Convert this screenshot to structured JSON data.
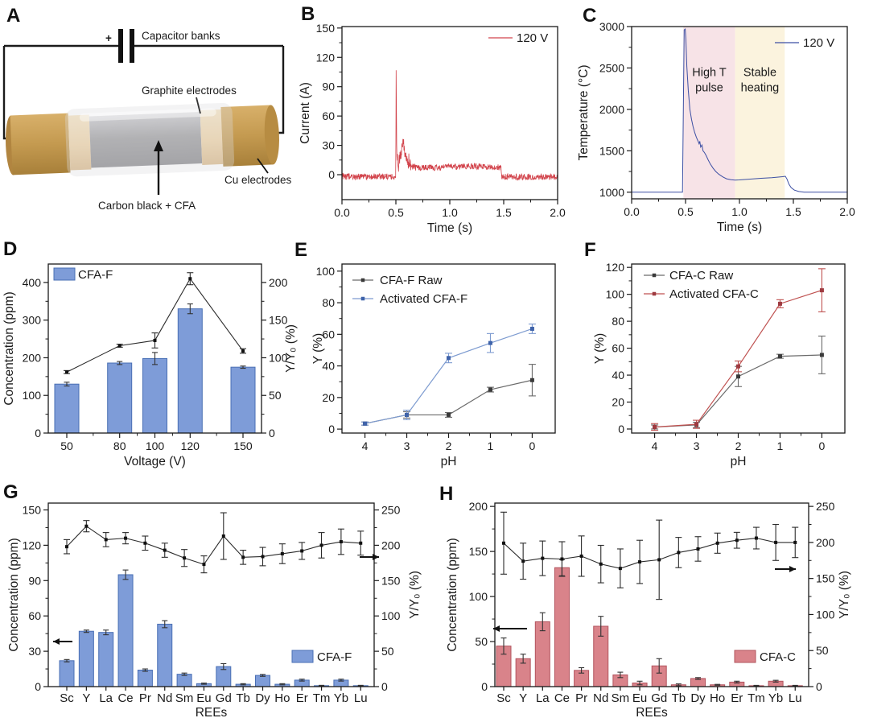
{
  "panel_a": {
    "label": "A",
    "plus_sign": "+",
    "capacitor_label": "Capacitor banks",
    "graphite_label": "Graphite electrodes",
    "cu_label": "Cu electrodes",
    "core_label": "Carbon black + CFA",
    "colors": {
      "cu": "#c49a50",
      "cu_dark": "#b18540",
      "graphite_ring": "#eed2a4",
      "core_gray": "#9b9b9d",
      "cu_text": "#d2a965",
      "graphite_text": "#8c8c8c"
    }
  },
  "chart_data": [
    {
      "panel": "B",
      "type": "line",
      "xlabel": "Time (s)",
      "ylabel": "Current (A)",
      "xlim": [
        0,
        2
      ],
      "ylim": [
        -25.5,
        151.5
      ],
      "xticks": [
        0,
        0.5,
        1,
        1.5,
        2
      ],
      "xtick_labels": [
        "0.0",
        "0.5",
        "1.0",
        "1.5",
        "2.0"
      ],
      "xminor": [
        0.25,
        0.75,
        1.25,
        1.75
      ],
      "yticks": [
        0,
        30,
        60,
        90,
        120,
        150
      ],
      "yminor": [
        15,
        45,
        75,
        105,
        135
      ],
      "legend": [
        {
          "label": "120 V",
          "color": "#d2444c"
        }
      ],
      "series": [
        {
          "name": "120 V",
          "color": "#d2444c",
          "width": 0.8,
          "noise": 3.2,
          "noise_boost": {
            "x0": 0.505,
            "x1": 0.64,
            "amp": 8
          },
          "points": [
            [
              0,
              -2
            ],
            [
              0.49,
              -2
            ],
            [
              0.499,
              0
            ],
            [
              0.503,
              120
            ],
            [
              0.506,
              45
            ],
            [
              0.509,
              12
            ],
            [
              0.515,
              14
            ],
            [
              0.525,
              12
            ],
            [
              0.54,
              20
            ],
            [
              0.555,
              26
            ],
            [
              0.565,
              30
            ],
            [
              0.573,
              33
            ],
            [
              0.582,
              26
            ],
            [
              0.595,
              18
            ],
            [
              0.61,
              13
            ],
            [
              0.63,
              10
            ],
            [
              0.66,
              8
            ],
            [
              0.7,
              7
            ],
            [
              0.8,
              7
            ],
            [
              0.9,
              7.5
            ],
            [
              1.0,
              8
            ],
            [
              1.1,
              8.5
            ],
            [
              1.2,
              8.5
            ],
            [
              1.3,
              8
            ],
            [
              1.4,
              8
            ],
            [
              1.45,
              7.5
            ],
            [
              1.475,
              6.5
            ],
            [
              1.483,
              -2
            ],
            [
              1.6,
              -2.5
            ],
            [
              1.8,
              -2
            ],
            [
              2,
              -2
            ]
          ]
        }
      ]
    },
    {
      "panel": "C",
      "type": "line",
      "xlabel": "Time (s)",
      "ylabel": "Temperature (°C)",
      "xlim": [
        0,
        2
      ],
      "ylim": [
        920,
        3000
      ],
      "xticks": [
        0,
        0.5,
        1,
        1.5,
        2
      ],
      "xtick_labels": [
        "0.0",
        "0.5",
        "1.0",
        "1.5",
        "2.0"
      ],
      "xminor": [
        0.25,
        0.75,
        1.25,
        1.75
      ],
      "yticks": [
        1000,
        1500,
        2000,
        2500,
        3000
      ],
      "yminor": [
        1250,
        1750,
        2250,
        2750
      ],
      "regions": [
        {
          "x0": 0.48,
          "x1": 0.96,
          "color": "#f7e3e7",
          "label": [
            "High T",
            "pulse"
          ],
          "label_x": 0.72,
          "label_y": 2400
        },
        {
          "x0": 0.96,
          "x1": 1.42,
          "color": "#fbf3de",
          "label": [
            "Stable",
            "heating"
          ],
          "label_x": 1.19,
          "label_y": 2400
        }
      ],
      "legend": [
        {
          "label": "120 V",
          "color": "#3c4fa3"
        }
      ],
      "series": [
        {
          "name": "120 V",
          "color": "#3c4fa3",
          "width": 1,
          "noise": 0,
          "points": [
            [
              0,
              1000
            ],
            [
              0.468,
              1000
            ],
            [
              0.472,
              1000
            ],
            [
              0.487,
              2960
            ],
            [
              0.497,
              2970
            ],
            [
              0.503,
              2850
            ],
            [
              0.512,
              2520
            ],
            [
              0.525,
              2230
            ],
            [
              0.54,
              2000
            ],
            [
              0.555,
              1880
            ],
            [
              0.57,
              1790
            ],
            [
              0.585,
              1720
            ],
            [
              0.6,
              1665
            ],
            [
              0.615,
              1620
            ],
            [
              0.625,
              1585
            ],
            [
              0.632,
              1615
            ],
            [
              0.64,
              1545
            ],
            [
              0.652,
              1570
            ],
            [
              0.662,
              1500
            ],
            [
              0.675,
              1480
            ],
            [
              0.69,
              1445
            ],
            [
              0.71,
              1390
            ],
            [
              0.73,
              1340
            ],
            [
              0.755,
              1290
            ],
            [
              0.78,
              1250
            ],
            [
              0.81,
              1215
            ],
            [
              0.845,
              1185
            ],
            [
              0.88,
              1162
            ],
            [
              0.92,
              1150
            ],
            [
              0.96,
              1146
            ],
            [
              1.0,
              1148
            ],
            [
              1.05,
              1153
            ],
            [
              1.1,
              1158
            ],
            [
              1.15,
              1163
            ],
            [
              1.2,
              1168
            ],
            [
              1.25,
              1172
            ],
            [
              1.3,
              1176
            ],
            [
              1.35,
              1181
            ],
            [
              1.4,
              1187
            ],
            [
              1.425,
              1192
            ],
            [
              1.44,
              1160
            ],
            [
              1.46,
              1095
            ],
            [
              1.48,
              1055
            ],
            [
              1.51,
              1025
            ],
            [
              1.55,
              1008
            ],
            [
              1.6,
              1001
            ],
            [
              1.65,
              1000
            ],
            [
              2,
              1000
            ]
          ]
        }
      ]
    },
    {
      "panel": "D",
      "type": "dualbar",
      "xlabel": "Voltage (V)",
      "ylabel": "Concentration (ppm)",
      "y2label": "Y/Y₀ (%)",
      "axis_colors": {
        "left": "#5b8ac8",
        "right": "#1a1a1a"
      },
      "x": [
        50,
        80,
        100,
        120,
        150
      ],
      "xticks": [
        50,
        80,
        100,
        120,
        150
      ],
      "xminor": [
        65,
        90,
        110,
        135
      ],
      "xlim": [
        39.5,
        160.5
      ],
      "ylim": [
        0,
        449
      ],
      "yticks": [
        0,
        100,
        200,
        300,
        400
      ],
      "yminor": [
        50,
        150,
        250,
        350
      ],
      "y2lim": [
        0,
        224.5
      ],
      "y2ticks": [
        0,
        50,
        100,
        150,
        200
      ],
      "y2minor": [
        25,
        75,
        125,
        175
      ],
      "bars": {
        "name": "CFA-F",
        "fill": "#7e9cd8",
        "edge": "#496fb4",
        "values": [
          130,
          186,
          198,
          330,
          175
        ],
        "errors": [
          5,
          4,
          16,
          13,
          3
        ]
      },
      "line": {
        "color": "#2b2b2b",
        "values": [
          81,
          116,
          123,
          205,
          109
        ],
        "errors": [
          2,
          2,
          10,
          8,
          3
        ]
      },
      "legend": [
        {
          "label": "CFA-F",
          "swatch": "#7e9cd8",
          "edge": "#496fb4"
        }
      ]
    },
    {
      "panel": "E",
      "type": "scatter",
      "xlabel": "pH",
      "ylabel": "Y (%)",
      "x": [
        4,
        3,
        2,
        1,
        0
      ],
      "xlim": [
        4.55,
        -0.55
      ],
      "xticks": [
        4,
        3,
        2,
        1,
        0
      ],
      "xminor": [
        3.5,
        2.5,
        1.5,
        0.5
      ],
      "ylim": [
        -2.5,
        104.5
      ],
      "yticks": [
        0,
        20,
        40,
        60,
        80,
        100
      ],
      "yminor": [
        10,
        30,
        50,
        70,
        90
      ],
      "series": [
        {
          "name": "CFA-F Raw",
          "line": "#6a6a6a",
          "marker": "#3a3a3a",
          "values": [
            3.5,
            9,
            9,
            25,
            31
          ],
          "errors": [
            1,
            2,
            1.5,
            1.5,
            10
          ]
        },
        {
          "name": "Activated CFA-F",
          "line": "#7d9bd0",
          "marker": "#3f63aa",
          "values": [
            3.5,
            9,
            45,
            54.5,
            63.5
          ],
          "errors": [
            1,
            3,
            3,
            6,
            3
          ]
        }
      ]
    },
    {
      "panel": "F",
      "type": "scatter",
      "xlabel": "pH",
      "ylabel": "Y (%)",
      "x": [
        4,
        3,
        2,
        1,
        0
      ],
      "xlim": [
        4.55,
        -0.55
      ],
      "xticks": [
        4,
        3,
        2,
        1,
        0
      ],
      "xminor": [
        3.5,
        2.5,
        1.5,
        0.5
      ],
      "ylim": [
        -3,
        122.5
      ],
      "yticks": [
        0,
        20,
        40,
        60,
        80,
        100,
        120
      ],
      "yminor": [
        10,
        30,
        50,
        70,
        90,
        110
      ],
      "series": [
        {
          "name": "CFA-C Raw",
          "line": "#6a6a6a",
          "marker": "#3a3a3a",
          "values": [
            1.5,
            3,
            39,
            54,
            55
          ],
          "errors": [
            1.5,
            2,
            7.5,
            1.5,
            14
          ]
        },
        {
          "name": "Activated CFA-C",
          "line": "#bf5150",
          "marker": "#9e3a40",
          "values": [
            1.5,
            3.5,
            46.5,
            93,
            103
          ],
          "errors": [
            2.5,
            3,
            4,
            3,
            16
          ]
        }
      ]
    },
    {
      "panel": "G",
      "type": "dualbar",
      "categorical": true,
      "xlabel": "REEs",
      "ylabel": "Concentration (ppm)",
      "y2label": "Y/Y₀ (%)",
      "axis_colors": {
        "left": "#5b8ac8",
        "right": "#1a1a1a"
      },
      "categories": [
        "Sc",
        "Y",
        "La",
        "Ce",
        "Pr",
        "Nd",
        "Sm",
        "Eu",
        "Gd",
        "Tb",
        "Dy",
        "Ho",
        "Er",
        "Tm",
        "Yb",
        "Lu"
      ],
      "ylim": [
        0,
        155.8
      ],
      "yticks": [
        0,
        30,
        60,
        90,
        120,
        150
      ],
      "yminor": [
        15,
        45,
        75,
        105,
        135
      ],
      "y2lim": [
        0,
        259.7
      ],
      "y2ticks": [
        0,
        50,
        100,
        150,
        200,
        250
      ],
      "y2minor": [
        25,
        75,
        125,
        175,
        225
      ],
      "bars": {
        "name": "CFA-F",
        "fill": "#7e9cd8",
        "edge": "#496fb4",
        "values": [
          22,
          47,
          46,
          95,
          14,
          53,
          10.5,
          2.5,
          17,
          2,
          9.5,
          2,
          5.5,
          0.8,
          5.5,
          0.8
        ],
        "errors": [
          1,
          1,
          2,
          4,
          1,
          3,
          1,
          0.5,
          2.5,
          0.5,
          0.8,
          0.5,
          0.8,
          0.3,
          0.8,
          0.3
        ]
      },
      "line": {
        "color": "#2b2b2b",
        "values": [
          198,
          227,
          208,
          210,
          203,
          193,
          182,
          173,
          213,
          183,
          184,
          188,
          192,
          200,
          205,
          203
        ],
        "errors": [
          10,
          8,
          10,
          8,
          10,
          10,
          12,
          12,
          33,
          10,
          13,
          14,
          12,
          18,
          18,
          17
        ]
      },
      "legend": [
        {
          "label": "CFA-F",
          "swatch": "#7e9cd8",
          "edge": "#496fb4"
        }
      ]
    },
    {
      "panel": "H",
      "type": "dualbar",
      "categorical": true,
      "xlabel": "REEs",
      "ylabel": "Concentration (ppm)",
      "y2label": "Y/Y₀ (%)",
      "axis_colors": {
        "left": "#b25b5b",
        "right": "#1a1a1a"
      },
      "categories": [
        "Sc",
        "Y",
        "La",
        "Ce",
        "Pr",
        "Nd",
        "Sm",
        "Eu",
        "Gd",
        "Tb",
        "Dy",
        "Ho",
        "Er",
        "Tm",
        "Yb",
        "Lu"
      ],
      "ylim": [
        0,
        203.7
      ],
      "yticks": [
        0,
        50,
        100,
        150,
        200
      ],
      "yminor": [
        25,
        75,
        125,
        175
      ],
      "y2lim": [
        0,
        254.6
      ],
      "y2ticks": [
        0,
        50,
        100,
        150,
        200,
        250
      ],
      "y2minor": [
        25,
        75,
        125,
        175,
        225
      ],
      "bars": {
        "name": "CFA-C",
        "fill": "#d9838a",
        "edge": "#b2545e",
        "values": [
          45,
          31,
          72,
          132,
          18,
          67,
          13,
          4,
          23,
          2,
          9,
          2,
          5,
          1,
          6,
          1
        ],
        "errors": [
          9,
          5,
          10,
          9,
          3,
          11,
          3,
          2,
          8,
          1,
          1,
          0.5,
          1,
          0.4,
          1,
          0.4
        ]
      },
      "line": {
        "color": "#2b2b2b",
        "values": [
          199,
          174,
          178,
          177,
          181,
          170,
          164,
          173,
          176,
          186,
          191,
          199,
          203,
          206,
          200,
          200
        ],
        "errors": [
          43,
          25,
          24,
          24,
          28,
          26,
          27,
          30,
          55,
          21,
          17,
          14,
          11,
          15,
          25,
          21
        ]
      },
      "legend": [
        {
          "label": "CFA-C",
          "swatch": "#d9838a",
          "edge": "#b2545e"
        }
      ]
    }
  ]
}
